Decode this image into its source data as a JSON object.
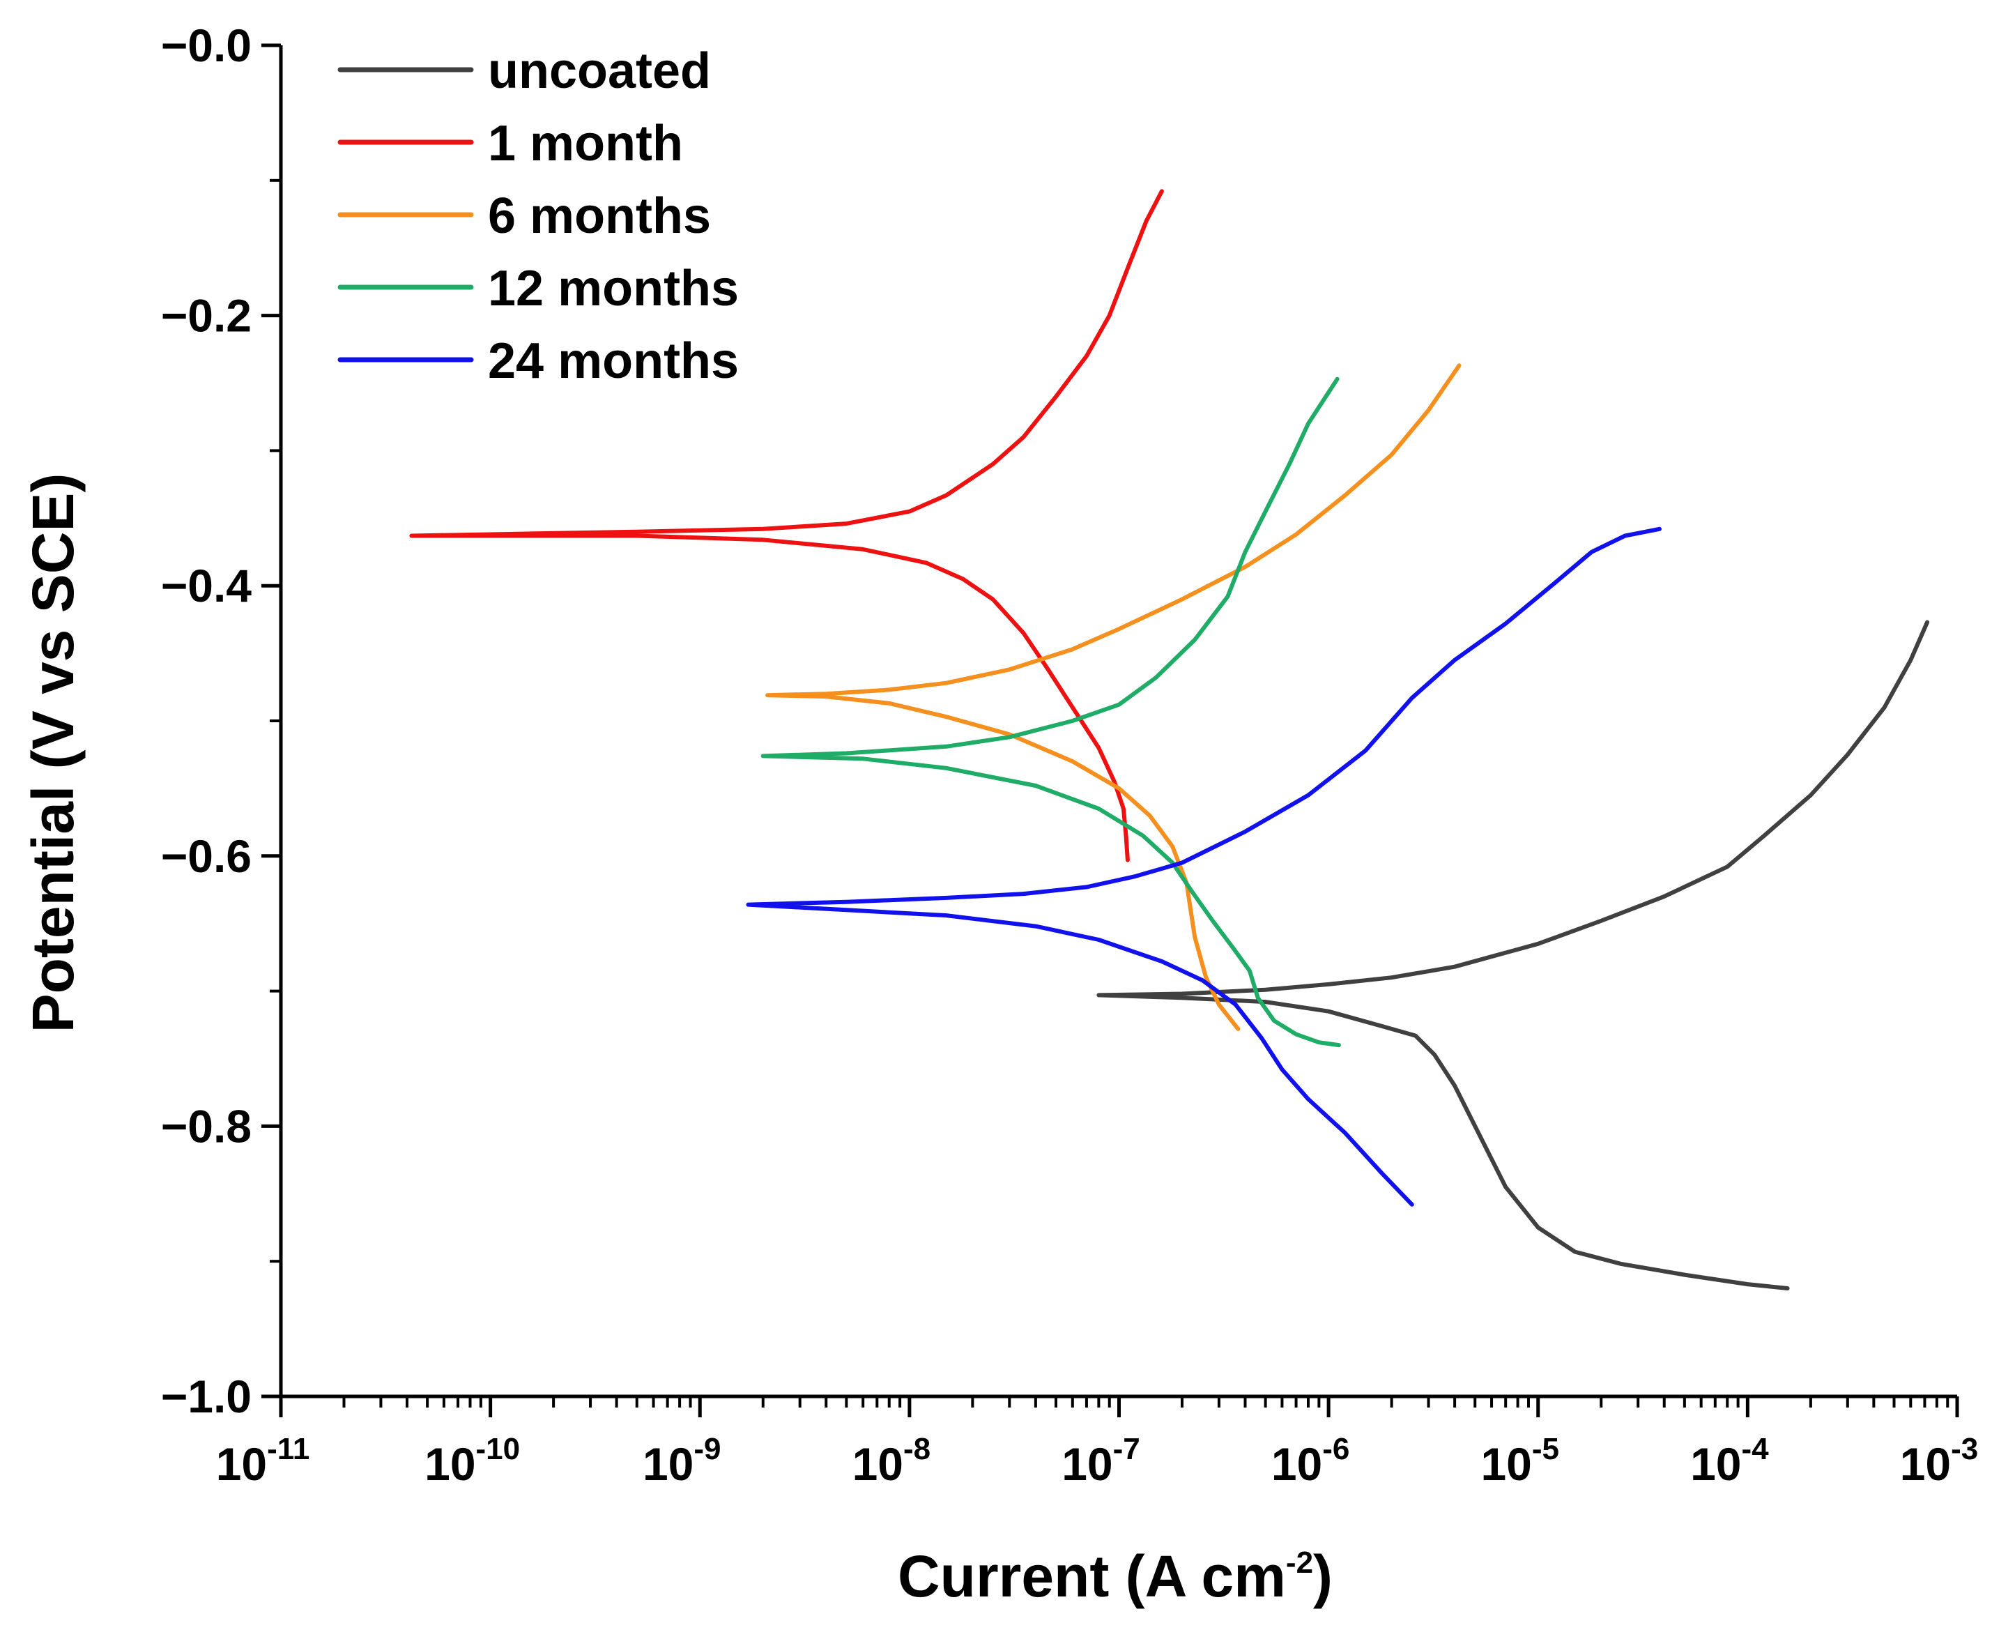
{
  "chart_data": {
    "type": "line",
    "title": "",
    "xlabel": "Current (A cm",
    "xlabel_exp": "-2",
    "xlabel_suffix": ")",
    "ylabel": "Potential (V vs SCE)",
    "x_scale": "log",
    "xlim": [
      1e-11,
      0.001
    ],
    "ylim": [
      -1.0,
      0.0
    ],
    "grid": false,
    "legend_position": "top-left",
    "x_ticks": [
      {
        "value": 1e-11,
        "base": "10",
        "exp": "-11"
      },
      {
        "value": 1e-10,
        "base": "10",
        "exp": "-10"
      },
      {
        "value": 1e-09,
        "base": "10",
        "exp": "-9"
      },
      {
        "value": 1e-08,
        "base": "10",
        "exp": "-8"
      },
      {
        "value": 1e-07,
        "base": "10",
        "exp": "-7"
      },
      {
        "value": 1e-06,
        "base": "10",
        "exp": "-6"
      },
      {
        "value": 1e-05,
        "base": "10",
        "exp": "-5"
      },
      {
        "value": 0.0001,
        "base": "10",
        "exp": "-4"
      },
      {
        "value": 0.001,
        "base": "10",
        "exp": "-3"
      }
    ],
    "y_ticks": [
      {
        "value": 0.0,
        "label": "−0.0"
      },
      {
        "value": -0.2,
        "label": "−0.2"
      },
      {
        "value": -0.4,
        "label": "−0.4"
      },
      {
        "value": -0.6,
        "label": "−0.6"
      },
      {
        "value": -0.8,
        "label": "−0.8"
      },
      {
        "value": -1.0,
        "label": "−1.0"
      }
    ],
    "series": [
      {
        "name": "uncoated",
        "color": "#404040",
        "points": [
          [
            0.000155,
            -0.92
          ],
          [
            0.0001,
            -0.917
          ],
          [
            5e-05,
            -0.91
          ],
          [
            2.5e-05,
            -0.902
          ],
          [
            1.5e-05,
            -0.893
          ],
          [
            1e-05,
            -0.875
          ],
          [
            7e-06,
            -0.845
          ],
          [
            5e-06,
            -0.8
          ],
          [
            4e-06,
            -0.77
          ],
          [
            3.2e-06,
            -0.747
          ],
          [
            2.6e-06,
            -0.733
          ],
          [
            1.8e-06,
            -0.726
          ],
          [
            1e-06,
            -0.715
          ],
          [
            5e-07,
            -0.708
          ],
          [
            2e-07,
            -0.705
          ],
          [
            8e-08,
            -0.703
          ],
          [
            2e-07,
            -0.702
          ],
          [
            5e-07,
            -0.699
          ],
          [
            1e-06,
            -0.695
          ],
          [
            2e-06,
            -0.69
          ],
          [
            4e-06,
            -0.682
          ],
          [
            1e-05,
            -0.665
          ],
          [
            2e-05,
            -0.648
          ],
          [
            4e-05,
            -0.63
          ],
          [
            8e-05,
            -0.608
          ],
          [
            0.00012,
            -0.585
          ],
          [
            0.0002,
            -0.555
          ],
          [
            0.0003,
            -0.525
          ],
          [
            0.00045,
            -0.49
          ],
          [
            0.0006,
            -0.455
          ],
          [
            0.00072,
            -0.427
          ]
        ]
      },
      {
        "name": "1 month",
        "color": "#ee1111",
        "points": [
          [
            1.1e-07,
            -0.603
          ],
          [
            1.08e-07,
            -0.585
          ],
          [
            1.05e-07,
            -0.565
          ],
          [
            9.5e-08,
            -0.545
          ],
          [
            8e-08,
            -0.52
          ],
          [
            6e-08,
            -0.49
          ],
          [
            4.5e-08,
            -0.46
          ],
          [
            3.5e-08,
            -0.435
          ],
          [
            2.5e-08,
            -0.41
          ],
          [
            1.8e-08,
            -0.395
          ],
          [
            1.2e-08,
            -0.383
          ],
          [
            6e-09,
            -0.373
          ],
          [
            2e-09,
            -0.366
          ],
          [
            5e-10,
            -0.363
          ],
          [
            4.2e-11,
            -0.363
          ],
          [
            5e-10,
            -0.36
          ],
          [
            2e-09,
            -0.358
          ],
          [
            5e-09,
            -0.354
          ],
          [
            1e-08,
            -0.345
          ],
          [
            1.5e-08,
            -0.333
          ],
          [
            2.5e-08,
            -0.31
          ],
          [
            3.5e-08,
            -0.29
          ],
          [
            5e-08,
            -0.26
          ],
          [
            7e-08,
            -0.23
          ],
          [
            9e-08,
            -0.2
          ],
          [
            1.1e-07,
            -0.165
          ],
          [
            1.35e-07,
            -0.13
          ],
          [
            1.6e-07,
            -0.108
          ]
        ]
      },
      {
        "name": "6 months",
        "color": "#f5901e",
        "points": [
          [
            3.7e-07,
            -0.728
          ],
          [
            3e-07,
            -0.71
          ],
          [
            2.6e-07,
            -0.69
          ],
          [
            2.3e-07,
            -0.66
          ],
          [
            2.1e-07,
            -0.62
          ],
          [
            1.8e-07,
            -0.593
          ],
          [
            1.4e-07,
            -0.57
          ],
          [
            1e-07,
            -0.55
          ],
          [
            6e-08,
            -0.53
          ],
          [
            3e-08,
            -0.51
          ],
          [
            1.5e-08,
            -0.497
          ],
          [
            8e-09,
            -0.487
          ],
          [
            4e-09,
            -0.482
          ],
          [
            2.1e-09,
            -0.481
          ],
          [
            4e-09,
            -0.48
          ],
          [
            8e-09,
            -0.477
          ],
          [
            1.5e-08,
            -0.472
          ],
          [
            3e-08,
            -0.462
          ],
          [
            6e-08,
            -0.447
          ],
          [
            1e-07,
            -0.432
          ],
          [
            2e-07,
            -0.41
          ],
          [
            4e-07,
            -0.386
          ],
          [
            7e-07,
            -0.362
          ],
          [
            1.2e-06,
            -0.333
          ],
          [
            2e-06,
            -0.303
          ],
          [
            3e-06,
            -0.27
          ],
          [
            4.2e-06,
            -0.237
          ]
        ]
      },
      {
        "name": "12 months",
        "color": "#1fac66",
        "points": [
          [
            1.12e-06,
            -0.74
          ],
          [
            9e-07,
            -0.738
          ],
          [
            7e-07,
            -0.732
          ],
          [
            5.5e-07,
            -0.722
          ],
          [
            4.6e-07,
            -0.705
          ],
          [
            4.2e-07,
            -0.685
          ],
          [
            3.5e-07,
            -0.668
          ],
          [
            2.8e-07,
            -0.648
          ],
          [
            2.2e-07,
            -0.625
          ],
          [
            1.8e-07,
            -0.605
          ],
          [
            1.3e-07,
            -0.585
          ],
          [
            8e-08,
            -0.565
          ],
          [
            4e-08,
            -0.548
          ],
          [
            1.5e-08,
            -0.535
          ],
          [
            6e-09,
            -0.528
          ],
          [
            2e-09,
            -0.526
          ],
          [
            5e-09,
            -0.524
          ],
          [
            1.5e-08,
            -0.519
          ],
          [
            3e-08,
            -0.512
          ],
          [
            6e-08,
            -0.5
          ],
          [
            1e-07,
            -0.488
          ],
          [
            1.5e-07,
            -0.468
          ],
          [
            2.3e-07,
            -0.44
          ],
          [
            3.3e-07,
            -0.408
          ],
          [
            4e-07,
            -0.375
          ],
          [
            5e-07,
            -0.345
          ],
          [
            6.5e-07,
            -0.31
          ],
          [
            8e-07,
            -0.28
          ],
          [
            1.1e-06,
            -0.247
          ]
        ]
      },
      {
        "name": "24 months",
        "color": "#1111ee",
        "points": [
          [
            2.5e-06,
            -0.858
          ],
          [
            1.8e-06,
            -0.835
          ],
          [
            1.2e-06,
            -0.805
          ],
          [
            8e-07,
            -0.78
          ],
          [
            6e-07,
            -0.758
          ],
          [
            4.8e-07,
            -0.735
          ],
          [
            3.6e-07,
            -0.71
          ],
          [
            2.5e-07,
            -0.692
          ],
          [
            1.6e-07,
            -0.678
          ],
          [
            8e-08,
            -0.662
          ],
          [
            4e-08,
            -0.652
          ],
          [
            1.5e-08,
            -0.644
          ],
          [
            5e-09,
            -0.64
          ],
          [
            1.7e-09,
            -0.636
          ],
          [
            5e-09,
            -0.634
          ],
          [
            1.5e-08,
            -0.631
          ],
          [
            3.5e-08,
            -0.628
          ],
          [
            7e-08,
            -0.623
          ],
          [
            1.2e-07,
            -0.615
          ],
          [
            2e-07,
            -0.605
          ],
          [
            4e-07,
            -0.582
          ],
          [
            8e-07,
            -0.555
          ],
          [
            1.5e-06,
            -0.522
          ],
          [
            2.5e-06,
            -0.483
          ],
          [
            4e-06,
            -0.455
          ],
          [
            7e-06,
            -0.428
          ],
          [
            1.2e-05,
            -0.398
          ],
          [
            1.8e-05,
            -0.375
          ],
          [
            2.6e-05,
            -0.363
          ],
          [
            3.8e-05,
            -0.358
          ]
        ]
      }
    ]
  }
}
